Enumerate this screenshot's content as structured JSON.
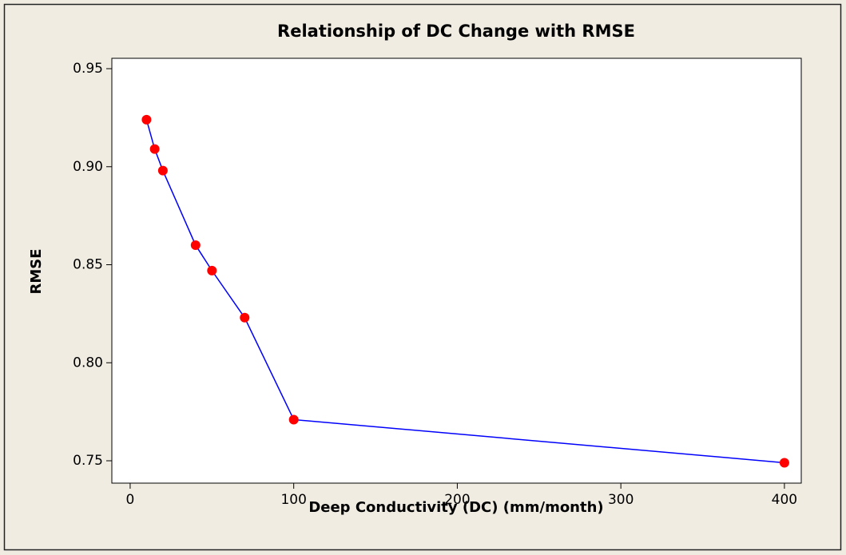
{
  "chart_data": {
    "type": "line",
    "title": "Relationship of DC Change with RMSE",
    "xlabel": "Deep Conductivity (DC) (mm/month)",
    "ylabel": "RMSE",
    "x": [
      10,
      15,
      20,
      40,
      50,
      70,
      100,
      400
    ],
    "series": [
      {
        "color": "#0000ff",
        "marker_color": "#ff0000",
        "values": [
          0.924,
          0.909,
          0.898,
          0.86,
          0.847,
          0.823,
          0.771,
          0.749
        ]
      }
    ],
    "xlim": [
      -11.2,
      410.3
    ],
    "xticks": [
      0,
      100,
      200,
      300,
      400
    ],
    "ylim": [
      0.7386,
      0.9553
    ],
    "yticks": [
      {
        "value": 0.75,
        "label": "0.75"
      },
      {
        "value": 0.8,
        "label": "0.80"
      },
      {
        "value": 0.85,
        "label": "0.85"
      },
      {
        "value": 0.9,
        "label": "0.90"
      },
      {
        "value": 0.95,
        "label": "0.95"
      }
    ],
    "grid": false
  }
}
